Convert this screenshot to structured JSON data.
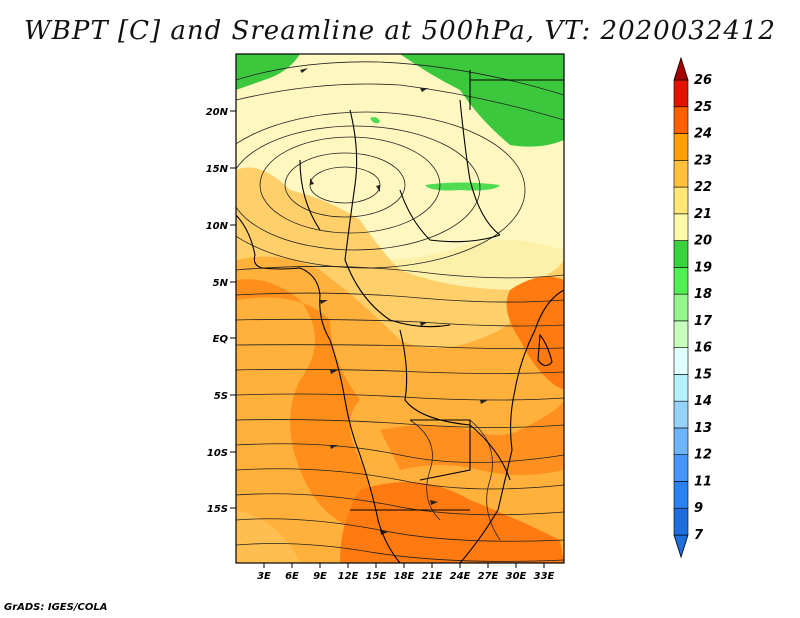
{
  "title": "WBPT [C] and Sreamline at 500hPa, VT: 2020032412",
  "credit": "GrADS: IGES/COLA",
  "map": {
    "lat_ticks": [
      "20N",
      "15N",
      "10N",
      "5N",
      "EQ",
      "5S",
      "10S",
      "15S"
    ],
    "lon_ticks": [
      "3E",
      "6E",
      "9E",
      "12E",
      "15E",
      "18E",
      "21E",
      "24E",
      "27E",
      "30E",
      "33E"
    ]
  },
  "colorbar": {
    "labels": [
      "7",
      "9",
      "11",
      "12",
      "13",
      "14",
      "15",
      "16",
      "17",
      "18",
      "19",
      "20",
      "21",
      "22",
      "23",
      "24",
      "25",
      "26"
    ],
    "colors": [
      "#1e6edc",
      "#2882f0",
      "#4696fa",
      "#6eb4fa",
      "#96d2fa",
      "#b4f0fa",
      "#e1ffff",
      "#c8ffbe",
      "#96f58c",
      "#50f050",
      "#37d23c",
      "#fafaaa",
      "#ffe878",
      "#ffc03c",
      "#ffa000",
      "#ff6000",
      "#e11400",
      "#a50000"
    ]
  }
}
